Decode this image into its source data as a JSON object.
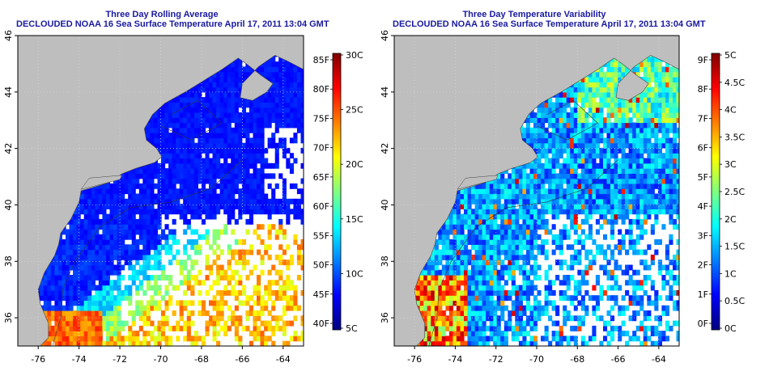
{
  "panels": [
    {
      "title": "Three Day Rolling Average",
      "subtitle": "DECLOUDED NOAA 16 Sea Surface Temperature April 17, 2011 13:04 GMT",
      "variable": "sst",
      "colorbar_left_labels": [
        "85F",
        "80F",
        "75F",
        "70F",
        "65F",
        "60F",
        "55F",
        "50F",
        "45F",
        "40F"
      ],
      "colorbar_right_labels": [
        "30C",
        "25C",
        "20C",
        "15C",
        "10C",
        "5C"
      ]
    },
    {
      "title": "Three Day Temperature Variability",
      "subtitle": "DECLOUDED NOAA 16 Sea Surface Temperature April 17, 2011 13:04 GMT",
      "variable": "variability",
      "colorbar_left_labels": [
        "9F",
        "8F",
        "7F",
        "6F",
        "5F",
        "4F",
        "3F",
        "2F",
        "1F",
        "0F"
      ],
      "colorbar_right_labels": [
        "5C",
        "4.5C",
        "4C",
        "3.5C",
        "3C",
        "2.5C",
        "2C",
        "1.5C",
        "1C",
        "0.5C",
        "0C"
      ]
    }
  ],
  "x_ticks": [
    "-76",
    "-74",
    "-72",
    "-70",
    "-68",
    "-66",
    "-64"
  ],
  "y_ticks": [
    "36",
    "38",
    "40",
    "42",
    "44",
    "46"
  ],
  "map_extent": {
    "lon": [
      -77.0,
      -63.0
    ],
    "lat": [
      35.0,
      46.0
    ]
  },
  "colors": {
    "land": "#bebebe",
    "title": "#1a1aa0",
    "colormap": [
      "#00007f",
      "#0000ff",
      "#007fff",
      "#00ffff",
      "#7fff7f",
      "#ffff00",
      "#ff7f00",
      "#ff0000",
      "#7f0000"
    ]
  }
}
